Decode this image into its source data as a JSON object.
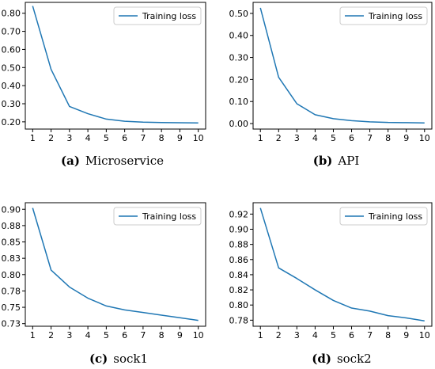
{
  "chart_data": [
    {
      "type": "line",
      "caption_letter": "(a)",
      "caption_text": "Microservice",
      "x": [
        1,
        2,
        3,
        4,
        5,
        6,
        7,
        8,
        9,
        10
      ],
      "series": [
        {
          "name": "Training loss",
          "color": "#1f77b4",
          "values": [
            0.84,
            0.49,
            0.285,
            0.245,
            0.215,
            0.203,
            0.198,
            0.196,
            0.195,
            0.194
          ]
        }
      ],
      "ylim": [
        0.16,
        0.86
      ],
      "yticks": [
        0.2,
        0.3,
        0.4,
        0.5,
        0.6,
        0.7,
        0.8
      ],
      "ytick_labels": [
        "0.20",
        "0.30",
        "0.40",
        "0.50",
        "0.60",
        "0.70",
        "0.80"
      ],
      "xticks": [
        1,
        2,
        3,
        4,
        5,
        6,
        7,
        8,
        9,
        10
      ],
      "legend": "top-right",
      "grid": false
    },
    {
      "type": "line",
      "caption_letter": "(b)",
      "caption_text": "API",
      "x": [
        1,
        2,
        3,
        4,
        5,
        6,
        7,
        8,
        9,
        10
      ],
      "series": [
        {
          "name": "Training loss",
          "color": "#1f77b4",
          "values": [
            0.525,
            0.21,
            0.09,
            0.04,
            0.022,
            0.013,
            0.008,
            0.005,
            0.004,
            0.003
          ]
        }
      ],
      "ylim": [
        -0.025,
        0.55
      ],
      "yticks": [
        0.0,
        0.1,
        0.2,
        0.3,
        0.4,
        0.5
      ],
      "ytick_labels": [
        "0.00",
        "0.10",
        "0.20",
        "0.30",
        "0.40",
        "0.50"
      ],
      "xticks": [
        1,
        2,
        3,
        4,
        5,
        6,
        7,
        8,
        9,
        10
      ],
      "legend": "top-right",
      "grid": false
    },
    {
      "type": "line",
      "caption_letter": "(c)",
      "caption_text": "sock1",
      "x": [
        1,
        2,
        3,
        4,
        5,
        6,
        7,
        8,
        9,
        10
      ],
      "series": [
        {
          "name": "Training loss",
          "color": "#1f77b4",
          "values": [
            0.907,
            0.812,
            0.786,
            0.769,
            0.757,
            0.751,
            0.747,
            0.743,
            0.739,
            0.735
          ]
        }
      ],
      "ylim": [
        0.726,
        0.915
      ],
      "yticks": [
        0.73,
        0.755,
        0.78,
        0.805,
        0.83,
        0.855,
        0.88,
        0.905
      ],
      "ytick_labels": [
        "0.73",
        "0.75",
        "0.78",
        "0.80",
        "0.83",
        "0.85",
        "0.88",
        "0.90"
      ],
      "xticks": [
        1,
        2,
        3,
        4,
        5,
        6,
        7,
        8,
        9,
        10
      ],
      "legend": "top-right",
      "grid": false
    },
    {
      "type": "line",
      "caption_letter": "(d)",
      "caption_text": "sock2",
      "x": [
        1,
        2,
        3,
        4,
        5,
        6,
        7,
        8,
        9,
        10
      ],
      "series": [
        {
          "name": "Training loss",
          "color": "#1f77b4",
          "values": [
            0.928,
            0.849,
            0.835,
            0.82,
            0.806,
            0.796,
            0.792,
            0.786,
            0.783,
            0.779
          ]
        }
      ],
      "ylim": [
        0.772,
        0.935
      ],
      "yticks": [
        0.78,
        0.8,
        0.82,
        0.84,
        0.86,
        0.88,
        0.9,
        0.92
      ],
      "ytick_labels": [
        "0.78",
        "0.80",
        "0.82",
        "0.84",
        "0.86",
        "0.88",
        "0.90",
        "0.92"
      ],
      "xticks": [
        1,
        2,
        3,
        4,
        5,
        6,
        7,
        8,
        9,
        10
      ],
      "legend": "top-right",
      "grid": false
    }
  ]
}
